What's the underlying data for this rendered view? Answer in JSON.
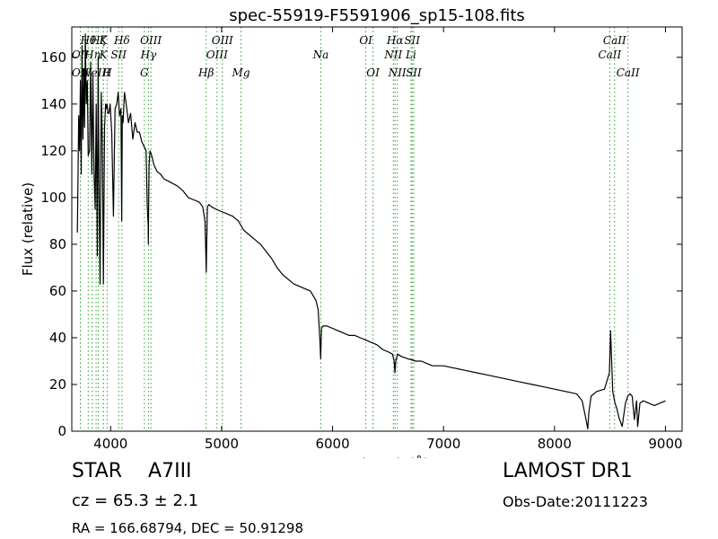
{
  "chart_data": {
    "type": "line",
    "title": "spec-55919-F5591906_sp15-108.fits",
    "xlabel": "Wavelength (Å)",
    "ylabel": "Flux (relative)",
    "xlim": [
      3650,
      9150
    ],
    "ylim": [
      0,
      173
    ],
    "xticks": [
      4000,
      5000,
      6000,
      7000,
      8000,
      9000
    ],
    "yticks": [
      0,
      20,
      40,
      60,
      80,
      100,
      120,
      140,
      160
    ],
    "grid": false,
    "line_color": "#000000",
    "marker_color": "#2ca02c",
    "series": [
      {
        "x": [
          3700,
          3712,
          3720,
          3728,
          3735,
          3742,
          3750,
          3758,
          3765,
          3772,
          3780,
          3790,
          3798,
          3810,
          3820,
          3830,
          3840,
          3850,
          3860,
          3870,
          3880,
          3888,
          3895,
          3905,
          3915,
          3925,
          3935,
          3945,
          3955,
          3960,
          3968,
          3975,
          3985,
          3995,
          4010,
          4025,
          4040,
          4055,
          4068,
          4080,
          4093,
          4100,
          4105,
          4112,
          4125,
          4140,
          4160,
          4180,
          4200,
          4220,
          4240,
          4260,
          4280,
          4300,
          4320,
          4330,
          4338,
          4340,
          4342,
          4346,
          4355,
          4370,
          4390,
          4420,
          4450,
          4480,
          4520,
          4560,
          4600,
          4650,
          4700,
          4750,
          4800,
          4830,
          4850,
          4858,
          4862,
          4866,
          4872,
          4885,
          4910,
          4950,
          5000,
          5050,
          5100,
          5150,
          5200,
          5250,
          5300,
          5350,
          5400,
          5450,
          5500,
          5550,
          5600,
          5650,
          5700,
          5750,
          5800,
          5850,
          5870,
          5885,
          5893,
          5900,
          5915,
          5950,
          6000,
          6050,
          6100,
          6150,
          6200,
          6250,
          6300,
          6350,
          6400,
          6450,
          6500,
          6540,
          6555,
          6562,
          6570,
          6585,
          6620,
          6680,
          6750,
          6800,
          6850,
          6900,
          6950,
          7000,
          7100,
          7200,
          7300,
          7400,
          7500,
          7600,
          7700,
          7800,
          7900,
          8000,
          8100,
          8200,
          8250,
          8280,
          8300,
          8310,
          8330,
          8380,
          8450,
          8495,
          8505,
          8515,
          8525,
          8545,
          8560,
          8580,
          8610,
          8640,
          8660,
          8680,
          8700,
          8720,
          8740,
          8750,
          8770,
          8800,
          8850,
          8900,
          8950,
          9000
        ],
        "values": [
          85,
          135,
          120,
          150,
          110,
          165,
          125,
          155,
          130,
          170,
          140,
          150,
          118,
          120,
          158,
          110,
          152,
          112,
          95,
          140,
          75,
          160,
          105,
          63,
          145,
          125,
          63,
          130,
          140,
          138,
          140,
          136,
          136,
          140,
          128,
          92,
          138,
          140,
          145,
          135,
          138,
          90,
          135,
          132,
          145,
          140,
          132,
          136,
          125,
          132,
          128,
          128,
          124,
          122,
          120,
          96,
          88,
          80,
          95,
          114,
          120,
          118,
          114,
          111,
          110,
          108,
          107,
          106,
          105,
          103,
          100,
          99,
          98,
          96,
          90,
          75,
          68,
          80,
          96,
          97,
          96,
          95,
          94,
          93,
          92,
          90,
          86,
          84,
          82,
          80,
          77,
          74,
          70,
          67,
          65,
          63,
          62,
          61,
          60,
          56,
          52,
          40,
          31,
          44,
          45,
          45,
          44,
          43,
          42,
          41,
          41,
          40,
          39,
          38,
          37,
          35,
          34,
          33,
          30,
          25,
          30,
          33,
          32,
          31,
          30,
          30,
          29,
          28,
          28,
          28,
          27,
          26,
          25,
          24,
          23,
          22,
          21,
          20,
          19,
          18,
          17,
          16,
          13,
          6,
          1,
          8,
          15,
          17,
          18,
          25,
          43,
          30,
          17,
          12,
          10,
          6,
          2,
          12,
          15,
          16,
          15,
          5,
          13,
          2,
          12,
          13,
          12,
          11,
          12,
          13
        ]
      }
    ],
    "lines": [
      {
        "x": 3727,
        "label": "OII",
        "row": 2
      },
      {
        "x": 3727,
        "label": "OII",
        "row": 3
      },
      {
        "x": 3798,
        "label": "Hθ",
        "row": 1
      },
      {
        "x": 3835,
        "label": "Hη",
        "row": 2
      },
      {
        "x": 3869,
        "label": "NeIII",
        "row": 3
      },
      {
        "x": 3889,
        "label": "Hζ",
        "row": 1
      },
      {
        "x": 3934,
        "label": "K",
        "row": 1
      },
      {
        "x": 3934,
        "label": "K",
        "row": 2
      },
      {
        "x": 3969,
        "label": "H",
        "row": 3
      },
      {
        "x": 4072,
        "label": "SII",
        "row": 2
      },
      {
        "x": 4102,
        "label": "Hδ",
        "row": 1
      },
      {
        "x": 4304,
        "label": "G",
        "row": 3
      },
      {
        "x": 4341,
        "label": "Hγ",
        "row": 2
      },
      {
        "x": 4363,
        "label": "OIII",
        "row": 1
      },
      {
        "x": 4861,
        "label": "Hβ",
        "row": 3
      },
      {
        "x": 4959,
        "label": "OIII",
        "row": 2
      },
      {
        "x": 5007,
        "label": "OIII",
        "row": 1
      },
      {
        "x": 5175,
        "label": "Mg",
        "row": 3
      },
      {
        "x": 5894,
        "label": "Na",
        "row": 2
      },
      {
        "x": 6300,
        "label": "OI",
        "row": 1
      },
      {
        "x": 6364,
        "label": "OI",
        "row": 3
      },
      {
        "x": 6548,
        "label": "NII",
        "row": 2
      },
      {
        "x": 6563,
        "label": "Hα",
        "row": 1
      },
      {
        "x": 6583,
        "label": "NII",
        "row": 3
      },
      {
        "x": 6707,
        "label": "Li",
        "row": 2
      },
      {
        "x": 6717,
        "label": "SII",
        "row": 1
      },
      {
        "x": 6731,
        "label": "SII",
        "row": 3
      },
      {
        "x": 8498,
        "label": "CaII",
        "row": 2
      },
      {
        "x": 8542,
        "label": "CaII",
        "row": 1
      },
      {
        "x": 8662,
        "label": "CaII",
        "row": 3
      }
    ]
  },
  "info": {
    "object_type": "STAR",
    "subclass": "A7III",
    "cz_text": "cz = 65.3 ± 2.1",
    "radec_text": "RA = 166.68794, DEC = 50.91298",
    "survey": "LAMOST DR1",
    "obs_date": "Obs-Date:20111223"
  }
}
